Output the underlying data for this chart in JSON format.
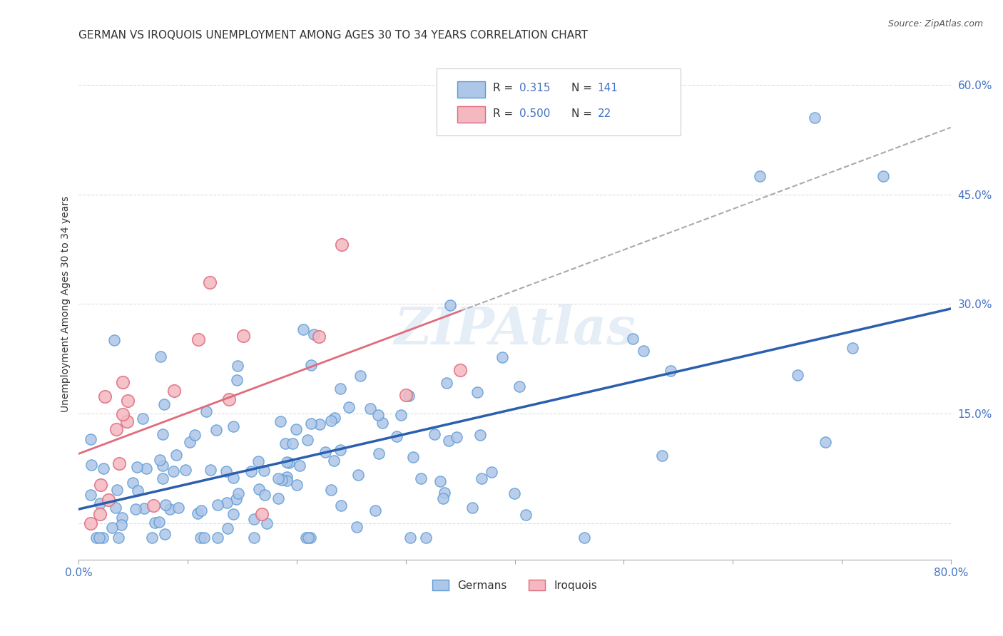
{
  "title": "GERMAN VS IROQUOIS UNEMPLOYMENT AMONG AGES 30 TO 34 YEARS CORRELATION CHART",
  "source": "Source: ZipAtlas.com",
  "xlabel": "",
  "ylabel": "Unemployment Among Ages 30 to 34 years",
  "xlim": [
    0.0,
    0.8
  ],
  "ylim": [
    -0.05,
    0.65
  ],
  "xticks": [
    0.0,
    0.1,
    0.2,
    0.3,
    0.4,
    0.5,
    0.6,
    0.7,
    0.8
  ],
  "xticklabels": [
    "0.0%",
    "",
    "",
    "",
    "",
    "",
    "",
    "",
    "80.0%"
  ],
  "yticks": [
    0.0,
    0.15,
    0.3,
    0.45,
    0.6
  ],
  "yticklabels": [
    "",
    "15.0%",
    "30.0%",
    "45.0%",
    "60.0%"
  ],
  "german_color": "#aec6e8",
  "german_edge_color": "#5b9bd5",
  "iroquois_color": "#f4b8c1",
  "iroquois_edge_color": "#e06b7d",
  "german_R": 0.315,
  "german_N": 141,
  "iroquois_R": 0.5,
  "iroquois_N": 22,
  "watermark": "ZIPAtlas",
  "background_color": "#ffffff",
  "grid_color": "#dddddd",
  "title_fontsize": 11,
  "axis_label_fontsize": 10,
  "legend_R_color": "#4472c4",
  "legend_N_color": "#4472c4"
}
